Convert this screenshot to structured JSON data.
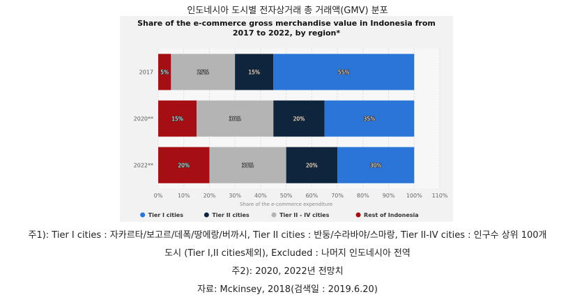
{
  "page_title": "인도네시아 도시별 전자상거래 총 거래액(GMV) 분포",
  "chart_data": {
    "type": "bar",
    "orientation": "horizontal",
    "stacked": true,
    "title_lines": [
      "Share of the e-commerce gross merchandise value in Indonesia from",
      "2017 to 2022, by region*"
    ],
    "xlabel": "Share of the e-commerce expenditure",
    "xlim": [
      0,
      110
    ],
    "xticks": [
      "0%",
      "10%",
      "20%",
      "30%",
      "40%",
      "50%",
      "60%",
      "70%",
      "80%",
      "90%",
      "100%",
      "110%"
    ],
    "categories": [
      "2017",
      "2020**",
      "2022**"
    ],
    "series": [
      {
        "name": "Rest of Indonesia",
        "color": "#a50e12",
        "values": [
          5,
          15,
          20
        ],
        "labels": [
          "5%",
          "15%",
          "20%"
        ]
      },
      {
        "name": "Tier II - IV cities",
        "color": "#b4b4b4",
        "values": [
          25,
          30,
          30
        ],
        "labels": [
          "25%",
          "30%",
          "30%"
        ]
      },
      {
        "name": "Tier II cities",
        "color": "#0f243d",
        "values": [
          15,
          20,
          20
        ],
        "labels": [
          "15%",
          "20%",
          "20%"
        ]
      },
      {
        "name": "Tier I cities",
        "color": "#2b74d8",
        "values": [
          55,
          35,
          30
        ],
        "labels": [
          "55%",
          "35%",
          "30%"
        ]
      }
    ],
    "legend_order": [
      "Tier I cities",
      "Tier II cities",
      "Tier II - IV cities",
      "Rest of Indonesia"
    ],
    "legend_position": "bottom",
    "grid": true
  },
  "notes": [
    "주1): Tier I cities : 자카르타/보고르/데폭/땅에랑/버까시, Tier II cities : 반둥/수라바야/스마랑, Tier II-IV cities : 인구수 상위 100개",
    "도시 (Tier I,II cities제외), Excluded : 나머지 인도네시아 전역",
    "주2): 2020, 2022년 전망치",
    "자료: Mckinsey, 2018(검색일 : 2019.6.20)"
  ]
}
